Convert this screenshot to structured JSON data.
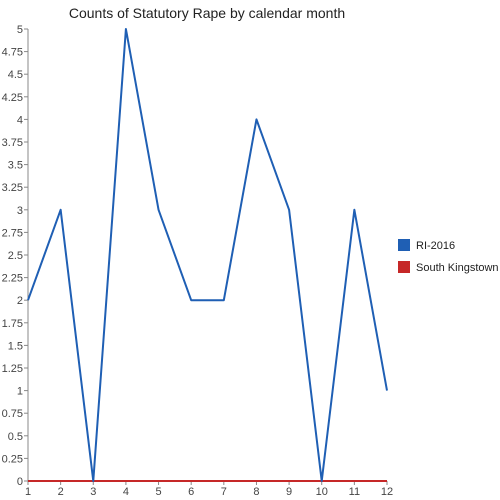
{
  "chart_data": {
    "type": "line",
    "title": "Counts of Statutory Rape by calendar month",
    "xlabel": "",
    "ylabel": "",
    "x": [
      1,
      2,
      3,
      4,
      5,
      6,
      7,
      8,
      9,
      10,
      11,
      12
    ],
    "x_tick_labels": [
      "1",
      "2",
      "3",
      "4",
      "5",
      "6",
      "7",
      "8",
      "9",
      "10",
      "11",
      "12"
    ],
    "ylim": [
      0,
      5
    ],
    "y_ticks": [
      0,
      0.25,
      0.5,
      0.75,
      1,
      1.25,
      1.5,
      1.75,
      2,
      2.25,
      2.5,
      2.75,
      3,
      3.25,
      3.5,
      3.75,
      4,
      4.25,
      4.5,
      4.75,
      5
    ],
    "y_tick_labels": [
      "0",
      "0.25",
      "0.5",
      "0.75",
      "1",
      "1.25",
      "1.5",
      "1.75",
      "2",
      "2.25",
      "2.5",
      "2.75",
      "3",
      "3.25",
      "3.5",
      "3.75",
      "4",
      "4.25",
      "4.5",
      "4.75",
      "5"
    ],
    "grid": false,
    "legend_position": "right",
    "series": [
      {
        "name": "RI-2016",
        "color": "#1f5fb4",
        "values": [
          2,
          3,
          0,
          5,
          3,
          2,
          2,
          4,
          3,
          0,
          3,
          1
        ]
      },
      {
        "name": "South Kingstown",
        "color": "#c62828",
        "values": [
          0,
          0,
          0,
          0,
          0,
          0,
          0,
          0,
          0,
          0,
          0,
          0
        ]
      }
    ]
  }
}
